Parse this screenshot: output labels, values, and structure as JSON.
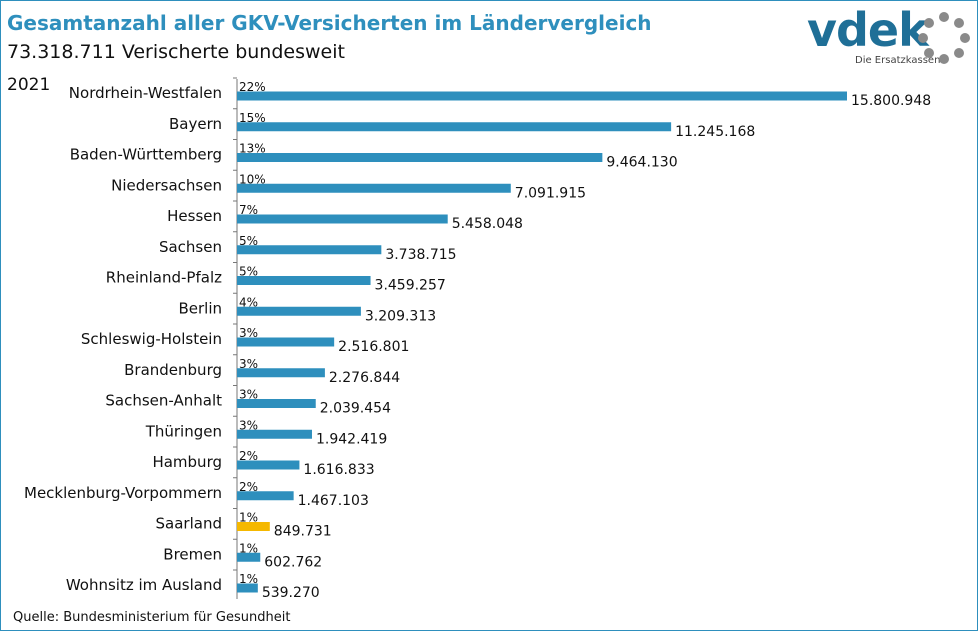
{
  "header": {
    "title": "Gesamtanzahl aller GKV-Versicherten im Ländervergleich",
    "subtitle": "73.318.711 Verischerte bundesweit",
    "year": "2021"
  },
  "logo": {
    "wordmark": "vdek",
    "tagline": "Die Ersatzkassen",
    "brand_color": "#1f6f97"
  },
  "footer": {
    "source": "Quelle: Bundesministerium für Gesundheit"
  },
  "colors": {
    "bar": "#2e8fbd",
    "highlight": "#f5b800",
    "title": "#2e8fbd"
  },
  "chart_data": {
    "type": "bar",
    "orientation": "horizontal",
    "categories": [
      "Nordrhein-Westfalen",
      "Bayern",
      "Baden-Württemberg",
      "Niedersachsen",
      "Hessen",
      "Sachsen",
      "Rheinland-Pfalz",
      "Berlin",
      "Schleswig-Holstein",
      "Brandenburg",
      "Sachsen-Anhalt",
      "Thüringen",
      "Hamburg",
      "Mecklenburg-Vorpommern",
      "Saarland",
      "Bremen",
      "Wohnsitz im Ausland"
    ],
    "values": [
      15800948,
      11245168,
      9464130,
      7091915,
      5458048,
      3738715,
      3459257,
      3209313,
      2516801,
      2276844,
      2039454,
      1942419,
      1616833,
      1467103,
      849731,
      602762,
      539270
    ],
    "value_labels": [
      "15.800.948",
      "11.245.168",
      "9.464.130",
      "7.091.915",
      "5.458.048",
      "3.738.715",
      "3.459.257",
      "3.209.313",
      "2.516.801",
      "2.276.844",
      "2.039.454",
      "1.942.419",
      "1.616.833",
      "1.467.103",
      "849.731",
      "602.762",
      "539.270"
    ],
    "percent_labels": [
      "22%",
      "15%",
      "13%",
      "10%",
      "7%",
      "5%",
      "5%",
      "4%",
      "3%",
      "3%",
      "3%",
      "3%",
      "2%",
      "2%",
      "1%",
      "1%",
      "1%"
    ],
    "highlight_category": "Saarland",
    "grid": false,
    "legend": "none"
  }
}
